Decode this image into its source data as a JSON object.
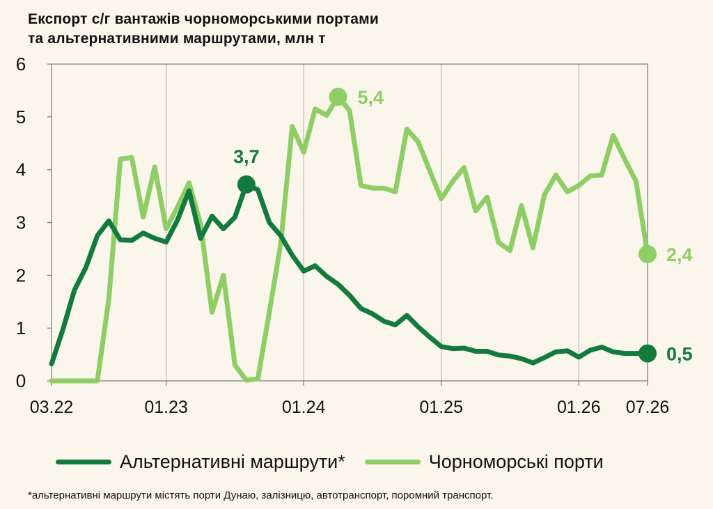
{
  "chart_data": {
    "type": "line",
    "title_lines": [
      "Експорт с/г вантажів чорноморськими портами",
      "та альтернативними маршрутами, млн т"
    ],
    "ylim": [
      0,
      6
    ],
    "y_ticks": [
      "0",
      "1",
      "2",
      "3",
      "4",
      "5",
      "6"
    ],
    "x_range": [
      "2022-03",
      "2026-07"
    ],
    "x_ticks": [
      {
        "date": "2022-03",
        "label": "03.22"
      },
      {
        "date": "2023-01",
        "label": "01.23"
      },
      {
        "date": "2024-01",
        "label": "01.24"
      },
      {
        "date": "2025-01",
        "label": "01.25"
      },
      {
        "date": "2026-01",
        "label": "01.26"
      },
      {
        "date": "2026-07",
        "label": "07.26"
      }
    ],
    "vertical_grid": true,
    "legend_position": "bottom",
    "series": [
      {
        "name": "Альтернативні маршрути*",
        "color": "#137a3e",
        "points": [
          [
            "2022-03",
            0.32
          ],
          [
            "2022-04",
            0.98
          ],
          [
            "2022-05",
            1.72
          ],
          [
            "2022-06",
            2.15
          ],
          [
            "2022-07",
            2.75
          ],
          [
            "2022-08",
            3.03
          ],
          [
            "2022-09",
            2.67
          ],
          [
            "2022-10",
            2.66
          ],
          [
            "2022-11",
            2.8
          ],
          [
            "2022-12",
            2.7
          ],
          [
            "2023-01",
            2.63
          ],
          [
            "2023-02",
            3.05
          ],
          [
            "2023-03",
            3.6
          ],
          [
            "2023-04",
            2.7
          ],
          [
            "2023-05",
            3.12
          ],
          [
            "2023-06",
            2.88
          ],
          [
            "2023-07",
            3.1
          ],
          [
            "2023-08",
            3.72
          ],
          [
            "2023-09",
            3.62
          ],
          [
            "2023-10",
            3.0
          ],
          [
            "2023-11",
            2.75
          ],
          [
            "2023-12",
            2.38
          ],
          [
            "2024-01",
            2.08
          ],
          [
            "2024-02",
            2.18
          ],
          [
            "2024-03",
            1.98
          ],
          [
            "2024-04",
            1.83
          ],
          [
            "2024-05",
            1.62
          ],
          [
            "2024-06",
            1.37
          ],
          [
            "2024-07",
            1.27
          ],
          [
            "2024-08",
            1.13
          ],
          [
            "2024-09",
            1.06
          ],
          [
            "2024-10",
            1.24
          ],
          [
            "2024-11",
            1.02
          ],
          [
            "2024-12",
            0.83
          ],
          [
            "2025-01",
            0.65
          ],
          [
            "2025-02",
            0.61
          ],
          [
            "2025-03",
            0.62
          ],
          [
            "2025-04",
            0.56
          ],
          [
            "2025-05",
            0.56
          ],
          [
            "2025-06",
            0.49
          ],
          [
            "2025-07",
            0.47
          ],
          [
            "2025-08",
            0.42
          ],
          [
            "2025-09",
            0.34
          ],
          [
            "2025-10",
            0.44
          ],
          [
            "2025-11",
            0.55
          ],
          [
            "2025-12",
            0.57
          ],
          [
            "2026-01",
            0.45
          ],
          [
            "2026-02",
            0.58
          ],
          [
            "2026-03",
            0.64
          ],
          [
            "2026-04",
            0.55
          ],
          [
            "2026-05",
            0.52
          ],
          [
            "2026-06",
            0.52
          ],
          [
            "2026-07",
            0.52
          ]
        ],
        "highlight": [
          {
            "date": "2023-08",
            "value": 3.72,
            "label": "3,7"
          },
          {
            "date": "2026-07",
            "value": 0.52,
            "label": "0,5"
          }
        ]
      },
      {
        "name": "Чорноморські порти",
        "color": "#8fcd66",
        "points": [
          [
            "2022-03",
            0.0
          ],
          [
            "2022-04",
            0.0
          ],
          [
            "2022-05",
            0.0
          ],
          [
            "2022-06",
            0.0
          ],
          [
            "2022-07",
            0.0
          ],
          [
            "2022-08",
            1.55
          ],
          [
            "2022-09",
            4.2
          ],
          [
            "2022-10",
            4.23
          ],
          [
            "2022-11",
            3.1
          ],
          [
            "2022-12",
            4.05
          ],
          [
            "2023-01",
            2.88
          ],
          [
            "2023-02",
            3.3
          ],
          [
            "2023-03",
            3.75
          ],
          [
            "2023-04",
            2.98
          ],
          [
            "2023-05",
            1.3
          ],
          [
            "2023-06",
            2.0
          ],
          [
            "2023-07",
            0.3
          ],
          [
            "2023-08",
            0.01
          ],
          [
            "2023-09",
            0.04
          ],
          [
            "2023-10",
            1.3
          ],
          [
            "2023-11",
            2.6
          ],
          [
            "2023-12",
            4.82
          ],
          [
            "2024-01",
            4.33
          ],
          [
            "2024-02",
            5.15
          ],
          [
            "2024-03",
            5.03
          ],
          [
            "2024-04",
            5.38
          ],
          [
            "2024-05",
            5.12
          ],
          [
            "2024-06",
            3.7
          ],
          [
            "2024-07",
            3.65
          ],
          [
            "2024-08",
            3.65
          ],
          [
            "2024-09",
            3.58
          ],
          [
            "2024-10",
            4.77
          ],
          [
            "2024-11",
            4.52
          ],
          [
            "2024-12",
            3.98
          ],
          [
            "2025-01",
            3.45
          ],
          [
            "2025-02",
            3.78
          ],
          [
            "2025-03",
            4.04
          ],
          [
            "2025-04",
            3.22
          ],
          [
            "2025-05",
            3.48
          ],
          [
            "2025-06",
            2.62
          ],
          [
            "2025-07",
            2.47
          ],
          [
            "2025-08",
            3.32
          ],
          [
            "2025-09",
            2.52
          ],
          [
            "2025-10",
            3.52
          ],
          [
            "2025-11",
            3.9
          ],
          [
            "2025-12",
            3.58
          ],
          [
            "2026-01",
            3.7
          ],
          [
            "2026-02",
            3.88
          ],
          [
            "2026-03",
            3.9
          ],
          [
            "2026-04",
            4.65
          ],
          [
            "2026-05",
            4.2
          ],
          [
            "2026-06",
            3.78
          ],
          [
            "2026-07",
            2.4
          ]
        ],
        "highlight": [
          {
            "date": "2024-04",
            "value": 5.38,
            "label": "5,4"
          },
          {
            "date": "2026-07",
            "value": 2.4,
            "label": "2,4"
          }
        ]
      }
    ],
    "footnote": "*альтернативні маршрути містять порти Дунаю, залізницю, автотранспорт, поромний транспорт."
  }
}
